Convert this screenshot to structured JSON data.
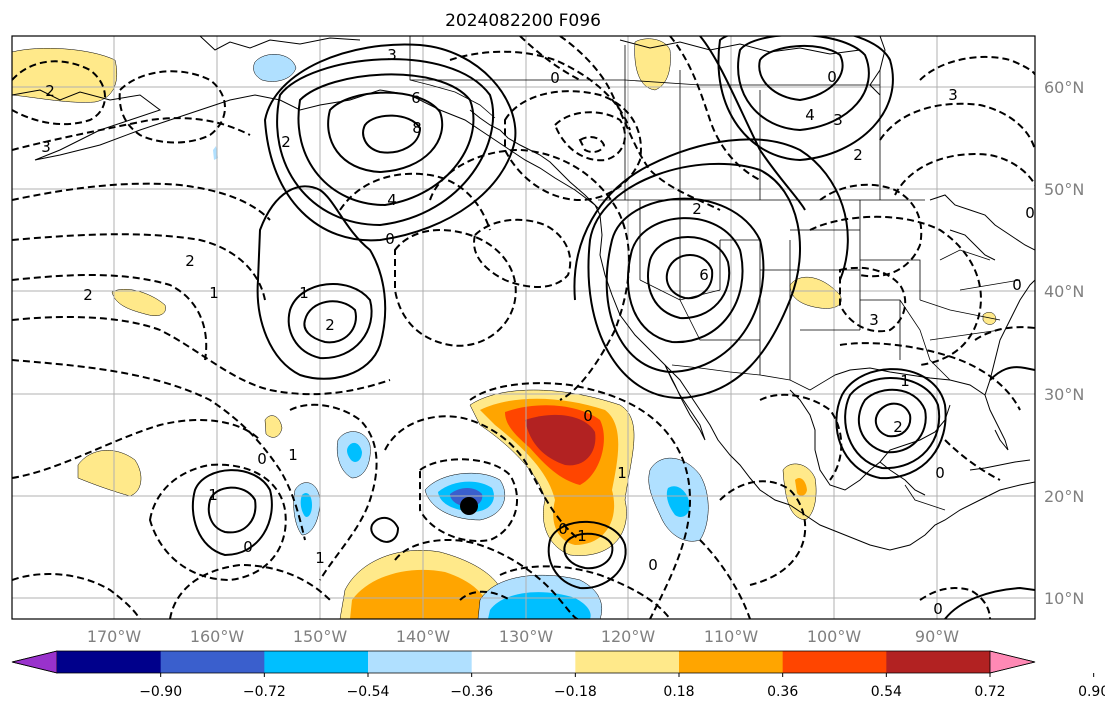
{
  "title": "2024082200 F096",
  "lon_labels": [
    "170°W",
    "160°W",
    "150°W",
    "140°W",
    "130°W",
    "120°W",
    "110°W",
    "100°W",
    "90°W"
  ],
  "lat_labels": [
    "60°N",
    "50°N",
    "40°N",
    "30°N",
    "20°N",
    "10°N"
  ],
  "colorbar": {
    "ticks": [
      "−0.90",
      "−0.72",
      "−0.54",
      "−0.36",
      "−0.18",
      "0.18",
      "0.36",
      "0.54",
      "0.72",
      "0.90"
    ],
    "colors": [
      "#9932cc",
      "#00008b",
      "#3a5fcd",
      "#00bfff",
      "#b0e0ff",
      "#ffffff",
      "#ffe98a",
      "#ffa500",
      "#ff4500",
      "#b22222",
      "#ff89b5"
    ]
  },
  "contour_labels": [
    "3",
    "6",
    "8",
    "4",
    "0",
    "2",
    "1",
    "2",
    "2",
    "3",
    "2",
    "1",
    "2",
    "0",
    "2",
    "3",
    "0",
    "0",
    "6",
    "4",
    "3",
    "2",
    "3",
    "0",
    "1",
    "2",
    "0",
    "1",
    "0",
    "1",
    "1",
    "0",
    "1",
    "0",
    "0",
    "1",
    "0",
    "0"
  ],
  "marker": {
    "name": "storm-center-marker",
    "lon": -134.8,
    "lat": 18.9
  }
}
